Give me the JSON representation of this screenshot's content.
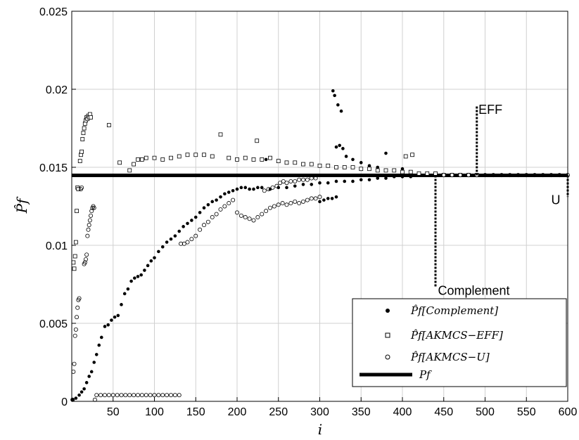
{
  "chart_data": {
    "type": "scatter",
    "xlabel": "i",
    "ylabel": "P̂f",
    "xlim": [
      0,
      600
    ],
    "ylim": [
      0,
      0.025
    ],
    "xticks": [
      50,
      100,
      150,
      200,
      250,
      300,
      350,
      400,
      450,
      500,
      550,
      600
    ],
    "yticks": [
      0,
      0.005,
      0.01,
      0.015,
      0.02,
      0.025
    ],
    "ytick_labels": [
      "0",
      "0.005",
      "0.01",
      "0.015",
      "0.02",
      "0.025"
    ],
    "grid": true,
    "legend_position": "bottom-right",
    "reference_line": {
      "name": "Pf",
      "y": 0.01448
    },
    "series": [
      {
        "name": "P̂f[Complement]",
        "marker": "filled-circle",
        "values": [
          [
            1,
            0.0001
          ],
          [
            5,
            0.0002
          ],
          [
            9,
            0.0004
          ],
          [
            12,
            0.0006
          ],
          [
            15,
            0.0008
          ],
          [
            18,
            0.0012
          ],
          [
            21,
            0.0016
          ],
          [
            24,
            0.0019
          ],
          [
            27,
            0.0025
          ],
          [
            30,
            0.003
          ],
          [
            33,
            0.0036
          ],
          [
            36,
            0.0041
          ],
          [
            40,
            0.0048
          ],
          [
            44,
            0.0049
          ],
          [
            48,
            0.0052
          ],
          [
            52,
            0.0054
          ],
          [
            56,
            0.0055
          ],
          [
            60,
            0.0062
          ],
          [
            64,
            0.0069
          ],
          [
            68,
            0.0072
          ],
          [
            72,
            0.0077
          ],
          [
            76,
            0.0079
          ],
          [
            80,
            0.008
          ],
          [
            84,
            0.0081
          ],
          [
            88,
            0.0084
          ],
          [
            92,
            0.0087
          ],
          [
            96,
            0.009
          ],
          [
            100,
            0.0092
          ],
          [
            105,
            0.0096
          ],
          [
            110,
            0.0099
          ],
          [
            115,
            0.0102
          ],
          [
            120,
            0.0104
          ],
          [
            125,
            0.0106
          ],
          [
            130,
            0.0109
          ],
          [
            135,
            0.0112
          ],
          [
            140,
            0.0114
          ],
          [
            145,
            0.0116
          ],
          [
            150,
            0.0118
          ],
          [
            155,
            0.0121
          ],
          [
            160,
            0.0124
          ],
          [
            165,
            0.0126
          ],
          [
            170,
            0.0128
          ],
          [
            175,
            0.0129
          ],
          [
            180,
            0.0131
          ],
          [
            185,
            0.0133
          ],
          [
            190,
            0.0134
          ],
          [
            195,
            0.0135
          ],
          [
            200,
            0.0136
          ],
          [
            205,
            0.0137
          ],
          [
            210,
            0.0137
          ],
          [
            215,
            0.0136
          ],
          [
            220,
            0.0136
          ],
          [
            225,
            0.0137
          ],
          [
            230,
            0.0137
          ],
          [
            240,
            0.0136
          ],
          [
            250,
            0.0137
          ],
          [
            260,
            0.0137
          ],
          [
            270,
            0.0138
          ],
          [
            280,
            0.0139
          ],
          [
            290,
            0.0139
          ],
          [
            300,
            0.014
          ],
          [
            310,
            0.014
          ],
          [
            320,
            0.0141
          ],
          [
            330,
            0.0141
          ],
          [
            340,
            0.0141
          ],
          [
            350,
            0.0142
          ],
          [
            360,
            0.0142
          ],
          [
            370,
            0.0143
          ],
          [
            380,
            0.0143
          ],
          [
            390,
            0.0144
          ],
          [
            400,
            0.0144
          ],
          [
            410,
            0.0144
          ],
          [
            420,
            0.0145
          ],
          [
            430,
            0.0145
          ],
          [
            440,
            0.0145
          ],
          [
            300,
            0.0128
          ],
          [
            305,
            0.0129
          ],
          [
            310,
            0.013
          ],
          [
            315,
            0.013
          ],
          [
            320,
            0.0131
          ],
          [
            316,
            0.0199
          ],
          [
            318,
            0.0196
          ],
          [
            322,
            0.019
          ],
          [
            326,
            0.0186
          ],
          [
            320,
            0.0163
          ],
          [
            324,
            0.0164
          ],
          [
            328,
            0.0162
          ],
          [
            332,
            0.0157
          ],
          [
            340,
            0.0155
          ],
          [
            350,
            0.0153
          ],
          [
            360,
            0.0151
          ],
          [
            370,
            0.015
          ],
          [
            380,
            0.0159
          ],
          [
            390,
            0.0148
          ],
          [
            400,
            0.0149
          ],
          [
            410,
            0.0147
          ],
          [
            420,
            0.0146
          ],
          [
            235,
            0.0155
          ]
        ]
      },
      {
        "name": "P̂f[AKMCS−EFF]",
        "marker": "open-square",
        "values": [
          [
            2,
            0.0089
          ],
          [
            3,
            0.0085
          ],
          [
            4,
            0.0093
          ],
          [
            5,
            0.0102
          ],
          [
            6,
            0.0122
          ],
          [
            7,
            0.0137
          ],
          [
            8,
            0.0136
          ],
          [
            10,
            0.0154
          ],
          [
            11,
            0.0158
          ],
          [
            12,
            0.016
          ],
          [
            13,
            0.0168
          ],
          [
            14,
            0.0172
          ],
          [
            15,
            0.0175
          ],
          [
            16,
            0.0178
          ],
          [
            17,
            0.018
          ],
          [
            18,
            0.0182
          ],
          [
            19,
            0.0181
          ],
          [
            20,
            0.0183
          ],
          [
            21,
            0.0182
          ],
          [
            22,
            0.0184
          ],
          [
            23,
            0.0182
          ],
          [
            45,
            0.0177
          ],
          [
            58,
            0.0153
          ],
          [
            70,
            0.0148
          ],
          [
            75,
            0.0152
          ],
          [
            80,
            0.0155
          ],
          [
            85,
            0.0155
          ],
          [
            90,
            0.0156
          ],
          [
            100,
            0.0156
          ],
          [
            110,
            0.0155
          ],
          [
            120,
            0.0156
          ],
          [
            130,
            0.0157
          ],
          [
            140,
            0.0158
          ],
          [
            150,
            0.0158
          ],
          [
            160,
            0.0158
          ],
          [
            170,
            0.0157
          ],
          [
            180,
            0.0171
          ],
          [
            190,
            0.0156
          ],
          [
            200,
            0.0155
          ],
          [
            210,
            0.0156
          ],
          [
            220,
            0.0155
          ],
          [
            224,
            0.0167
          ],
          [
            230,
            0.0155
          ],
          [
            240,
            0.0156
          ],
          [
            250,
            0.0154
          ],
          [
            260,
            0.0153
          ],
          [
            270,
            0.0153
          ],
          [
            280,
            0.0152
          ],
          [
            290,
            0.0152
          ],
          [
            300,
            0.0151
          ],
          [
            310,
            0.0151
          ],
          [
            320,
            0.015
          ],
          [
            330,
            0.015
          ],
          [
            340,
            0.015
          ],
          [
            350,
            0.0149
          ],
          [
            360,
            0.0149
          ],
          [
            370,
            0.0148
          ],
          [
            380,
            0.0148
          ],
          [
            390,
            0.0148
          ],
          [
            400,
            0.0147
          ],
          [
            410,
            0.0147
          ],
          [
            420,
            0.0146
          ],
          [
            430,
            0.0146
          ],
          [
            440,
            0.0146
          ],
          [
            450,
            0.0145
          ],
          [
            460,
            0.0145
          ],
          [
            470,
            0.0145
          ],
          [
            480,
            0.0145
          ],
          [
            490,
            0.0145
          ],
          [
            404,
            0.0157
          ],
          [
            412,
            0.0158
          ]
        ]
      },
      {
        "name": "P̂f[AKMCS−U]",
        "marker": "open-circle",
        "values": [
          [
            1,
            0.0001
          ],
          [
            2,
            0.0019
          ],
          [
            3,
            0.0024
          ],
          [
            4,
            0.0042
          ],
          [
            5,
            0.0046
          ],
          [
            6,
            0.0054
          ],
          [
            7,
            0.006
          ],
          [
            8,
            0.0065
          ],
          [
            9,
            0.0066
          ],
          [
            11,
            0.0136
          ],
          [
            12,
            0.0137
          ],
          [
            15,
            0.0088
          ],
          [
            16,
            0.0089
          ],
          [
            17,
            0.0091
          ],
          [
            18,
            0.0094
          ],
          [
            19,
            0.0106
          ],
          [
            20,
            0.011
          ],
          [
            21,
            0.0113
          ],
          [
            22,
            0.0116
          ],
          [
            23,
            0.0119
          ],
          [
            24,
            0.0122
          ],
          [
            25,
            0.0124
          ],
          [
            26,
            0.0125
          ],
          [
            27,
            0.0124
          ],
          [
            28,
            0.0001
          ],
          [
            30,
            0.0004
          ],
          [
            35,
            0.0004
          ],
          [
            40,
            0.0004
          ],
          [
            45,
            0.0004
          ],
          [
            50,
            0.0004
          ],
          [
            55,
            0.0004
          ],
          [
            60,
            0.0004
          ],
          [
            65,
            0.0004
          ],
          [
            70,
            0.0004
          ],
          [
            75,
            0.0004
          ],
          [
            80,
            0.0004
          ],
          [
            85,
            0.0004
          ],
          [
            90,
            0.0004
          ],
          [
            95,
            0.0004
          ],
          [
            100,
            0.0004
          ],
          [
            105,
            0.0004
          ],
          [
            110,
            0.0004
          ],
          [
            115,
            0.0004
          ],
          [
            120,
            0.0004
          ],
          [
            125,
            0.0004
          ],
          [
            130,
            0.0004
          ],
          [
            132,
            0.0101
          ],
          [
            136,
            0.0101
          ],
          [
            140,
            0.0102
          ],
          [
            145,
            0.0104
          ],
          [
            150,
            0.0106
          ],
          [
            155,
            0.011
          ],
          [
            160,
            0.0113
          ],
          [
            165,
            0.0115
          ],
          [
            170,
            0.0118
          ],
          [
            175,
            0.012
          ],
          [
            180,
            0.0123
          ],
          [
            185,
            0.0125
          ],
          [
            190,
            0.0127
          ],
          [
            195,
            0.0129
          ],
          [
            200,
            0.0121
          ],
          [
            205,
            0.0119
          ],
          [
            210,
            0.0118
          ],
          [
            215,
            0.0117
          ],
          [
            220,
            0.0116
          ],
          [
            225,
            0.0118
          ],
          [
            230,
            0.012
          ],
          [
            235,
            0.0122
          ],
          [
            240,
            0.0124
          ],
          [
            245,
            0.0125
          ],
          [
            250,
            0.0126
          ],
          [
            255,
            0.0127
          ],
          [
            260,
            0.0126
          ],
          [
            265,
            0.0127
          ],
          [
            270,
            0.0128
          ],
          [
            275,
            0.0127
          ],
          [
            280,
            0.0128
          ],
          [
            285,
            0.0129
          ],
          [
            290,
            0.013
          ],
          [
            295,
            0.013
          ],
          [
            300,
            0.0131
          ],
          [
            233,
            0.0135
          ],
          [
            238,
            0.0136
          ],
          [
            243,
            0.0137
          ],
          [
            248,
            0.0138
          ],
          [
            252,
            0.014
          ],
          [
            256,
            0.0141
          ],
          [
            260,
            0.014
          ],
          [
            265,
            0.0141
          ],
          [
            270,
            0.0141
          ],
          [
            275,
            0.0142
          ],
          [
            280,
            0.0142
          ],
          [
            285,
            0.0142
          ],
          [
            290,
            0.0143
          ],
          [
            295,
            0.0143
          ],
          [
            450,
            0.0145
          ],
          [
            460,
            0.0145
          ],
          [
            470,
            0.0145
          ],
          [
            480,
            0.0145
          ],
          [
            490,
            0.0145
          ],
          [
            500,
            0.0145
          ],
          [
            510,
            0.0145
          ],
          [
            520,
            0.0145
          ],
          [
            530,
            0.0145
          ],
          [
            540,
            0.0145
          ],
          [
            550,
            0.0145
          ],
          [
            560,
            0.0145
          ],
          [
            570,
            0.0145
          ],
          [
            580,
            0.0145
          ],
          [
            590,
            0.0145
          ],
          [
            600,
            0.0145
          ]
        ]
      }
    ],
    "annotations": [
      {
        "label": "EFF",
        "x": 490,
        "y_start": 0.01448,
        "y_end": 0.0189,
        "text_x": 492,
        "text_y": 0.0187
      },
      {
        "label": "Complement",
        "x": 440,
        "y_start": 0.01448,
        "y_end": 0.0073,
        "text_x": 443,
        "text_y": 0.0071
      },
      {
        "label": "U",
        "x": 600,
        "y_start": 0.01448,
        "y_end": 0.0131,
        "text_x": 580,
        "text_y": 0.0129
      }
    ]
  }
}
